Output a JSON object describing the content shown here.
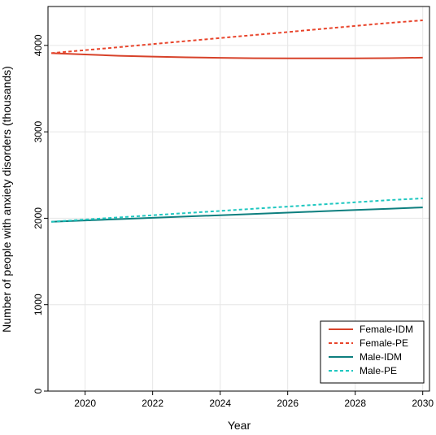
{
  "chart_data": {
    "type": "line",
    "title": "",
    "xlabel": "Year",
    "ylabel": "Number of people with anxiety disorders (thousands)",
    "xlim": [
      2018.9,
      2030.2
    ],
    "ylim": [
      0,
      4450
    ],
    "x_ticks": [
      2020,
      2022,
      2024,
      2026,
      2028,
      2030
    ],
    "y_ticks": [
      0,
      1000,
      2000,
      3000,
      4000
    ],
    "grid": true,
    "legend_position": "bottom-right",
    "x": [
      2019,
      2020,
      2021,
      2022,
      2023,
      2024,
      2025,
      2026,
      2027,
      2028,
      2029,
      2030
    ],
    "series": [
      {
        "name": "Female-IDM",
        "color": "#d7422a",
        "dash": "solid",
        "values": [
          3910,
          3895,
          3880,
          3870,
          3862,
          3856,
          3852,
          3850,
          3850,
          3851,
          3853,
          3858
        ]
      },
      {
        "name": "Female-PE",
        "color": "#e8442b",
        "dash": "dotted",
        "values": [
          3910,
          3945,
          3980,
          4015,
          4050,
          4085,
          4120,
          4155,
          4190,
          4225,
          4260,
          4290
        ]
      },
      {
        "name": "Male-IDM",
        "color": "#0e7f7f",
        "dash": "solid",
        "values": [
          1960,
          1975,
          1990,
          2005,
          2020,
          2035,
          2050,
          2065,
          2080,
          2095,
          2110,
          2125
        ]
      },
      {
        "name": "Male-PE",
        "color": "#1fc7c0",
        "dash": "dotted",
        "values": [
          1960,
          1985,
          2010,
          2035,
          2060,
          2085,
          2110,
          2135,
          2160,
          2185,
          2210,
          2230
        ]
      }
    ]
  }
}
